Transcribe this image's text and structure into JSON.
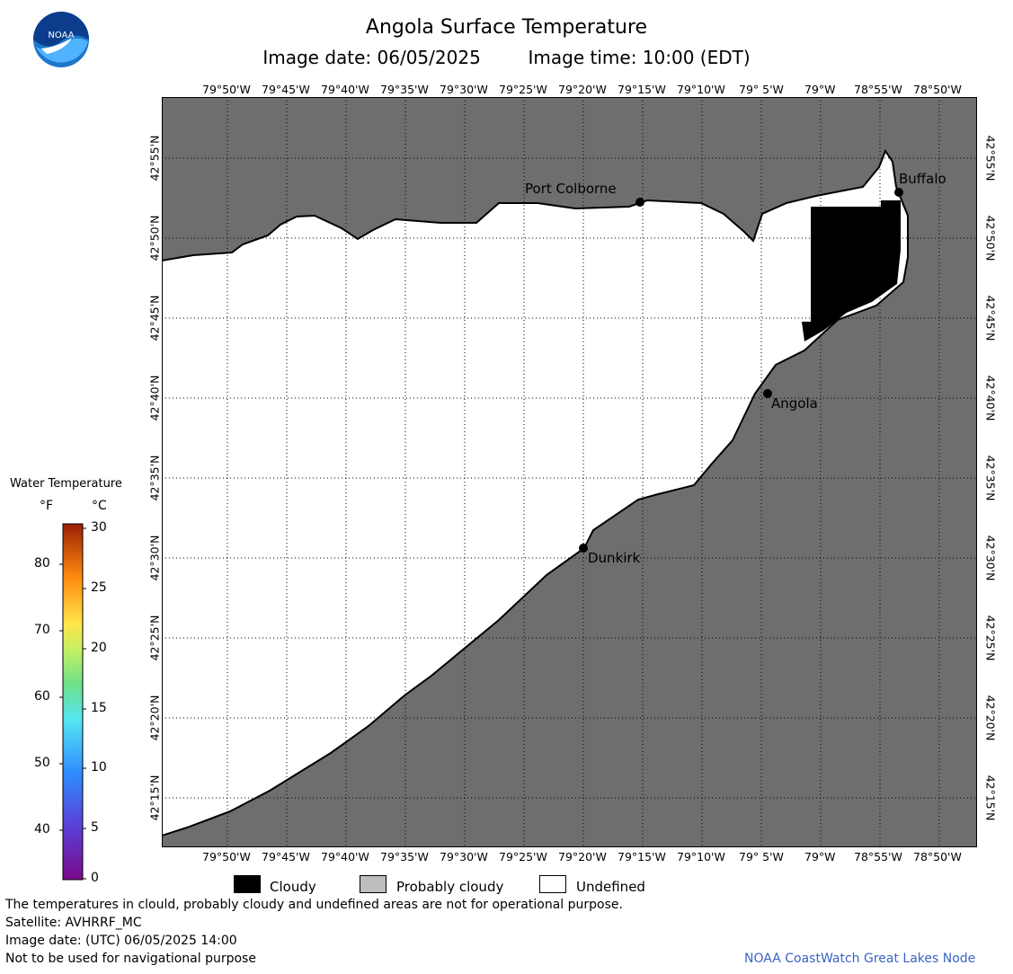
{
  "header": {
    "title": "Angola Surface Temperature",
    "image_date_label": "Image date: 06/05/2025",
    "image_time_label": "Image time: 10:00 (EDT)"
  },
  "logo": {
    "name": "noaa-logo",
    "text": "NOAA"
  },
  "map": {
    "lon_ticks": [
      "79°50'W",
      "79°45'W",
      "79°40'W",
      "79°35'W",
      "79°30'W",
      "79°25'W",
      "79°20'W",
      "79°15'W",
      "79°10'W",
      "79° 5'W",
      "79°W",
      "78°55'W",
      "78°50'W"
    ],
    "lat_ticks": [
      "42°55'N",
      "42°50'N",
      "42°45'N",
      "42°40'N",
      "42°35'N",
      "42°30'N",
      "42°25'N",
      "42°20'N",
      "42°15'N"
    ],
    "places": [
      {
        "name": "Port Colborne"
      },
      {
        "name": "Buffalo"
      },
      {
        "name": "Angola"
      },
      {
        "name": "Dunkirk"
      }
    ],
    "colors": {
      "land": "#6e6e6e",
      "undefined": "#ffffff",
      "cloudy": "#000000",
      "grid": "#000000"
    }
  },
  "temperature_scale": {
    "title": "Water Temperature",
    "unit_f": "°F",
    "unit_c": "°C",
    "f_labels": [
      "80",
      "70",
      "60",
      "50",
      "40"
    ],
    "c_labels": [
      "30",
      "25",
      "20",
      "15",
      "10",
      "5",
      "0"
    ]
  },
  "legend": {
    "cloudy": "Cloudy",
    "probably_cloudy": "Probably cloudy",
    "undefined": "Undefined"
  },
  "notes": {
    "disclaimer": "The temperatures in clould, probably cloudy and undefined areas are not for operational purpose.",
    "satellite": "Satellite: AVHRRF_MC",
    "utc_date": "Image date: (UTC) 06/05/2025  14:00",
    "nav": "Not to be used for navigational purpose"
  },
  "credit": "NOAA CoastWatch Great Lakes Node"
}
